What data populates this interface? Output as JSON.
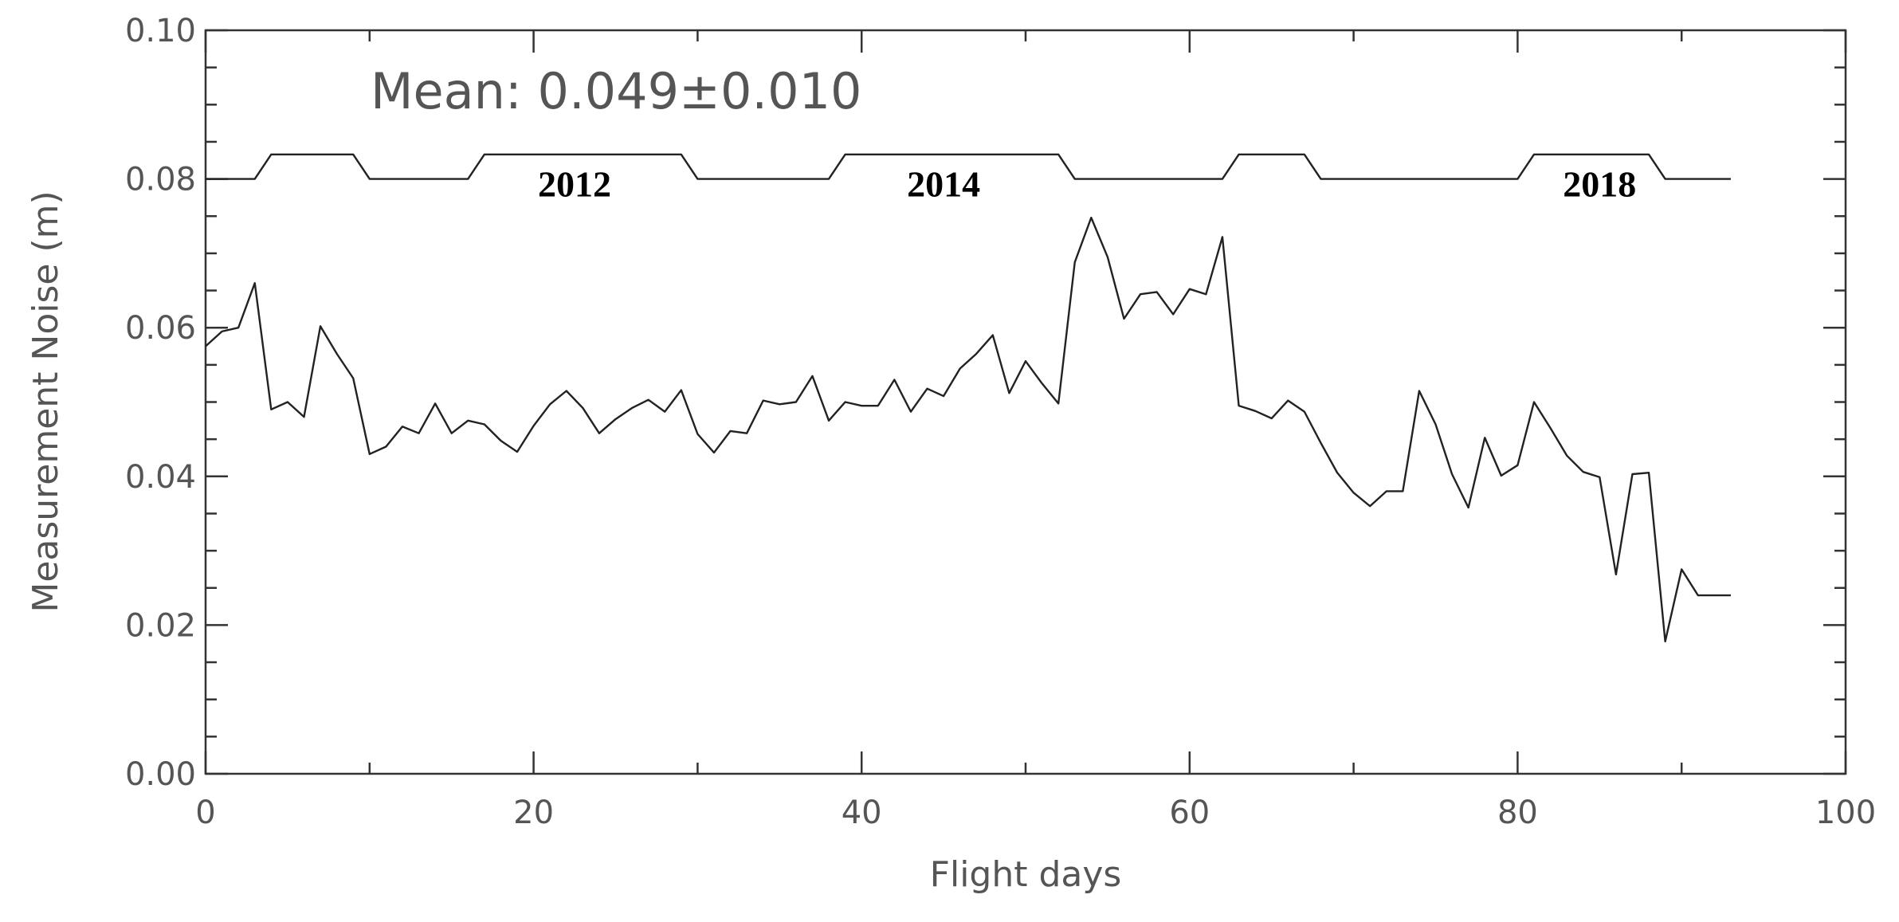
{
  "chart_data": {
    "type": "line",
    "title": "",
    "xlabel": "Flight days",
    "ylabel": "Measurement Noise (m)",
    "xlim": [
      0,
      100
    ],
    "ylim": [
      0,
      0.1
    ],
    "x_ticks": [
      0,
      20,
      40,
      60,
      80,
      100
    ],
    "y_ticks": [
      0.0,
      0.02,
      0.04,
      0.06,
      0.08,
      0.1
    ],
    "x_tick_labels": [
      "0",
      "20",
      "40",
      "60",
      "80",
      "100"
    ],
    "y_tick_labels": [
      "0.00",
      "0.02",
      "0.04",
      "0.06",
      "0.08",
      "0.10"
    ],
    "grid": false,
    "annotation": "Mean: 0.049±0.010",
    "series": [
      {
        "x": [
          0,
          1,
          2,
          3,
          4,
          5,
          6,
          7,
          8,
          9,
          10,
          11,
          12,
          13,
          14,
          15,
          16,
          17,
          18,
          19,
          20,
          21,
          22,
          23,
          24,
          25,
          26,
          27,
          28,
          29,
          30,
          31,
          32,
          33,
          34,
          35,
          36,
          37,
          38,
          39,
          40,
          41,
          42,
          43,
          44,
          45,
          46,
          47,
          48,
          49,
          50,
          51,
          52,
          53,
          54,
          55,
          56,
          57,
          58,
          59,
          60,
          61,
          62,
          63,
          64,
          65,
          66,
          67,
          68,
          69,
          70,
          71,
          72,
          73,
          74,
          75,
          76,
          77,
          78,
          79,
          80,
          81,
          82,
          83,
          84,
          85,
          86,
          87,
          88,
          89,
          90,
          91,
          92,
          93
        ],
        "values": [
          0.0575,
          0.0595,
          0.06,
          0.066,
          0.049,
          0.05,
          0.048,
          0.0602,
          0.0565,
          0.0532,
          0.043,
          0.044,
          0.0467,
          0.0458,
          0.0498,
          0.0458,
          0.0475,
          0.047,
          0.0448,
          0.0433,
          0.0468,
          0.0497,
          0.0515,
          0.0492,
          0.0458,
          0.0477,
          0.0492,
          0.0503,
          0.0487,
          0.0516,
          0.0457,
          0.0432,
          0.0461,
          0.0458,
          0.0502,
          0.0497,
          0.05,
          0.0535,
          0.0475,
          0.05,
          0.0495,
          0.0495,
          0.053,
          0.0487,
          0.0518,
          0.0508,
          0.0545,
          0.0565,
          0.059,
          0.0512,
          0.0555,
          0.0525,
          0.0498,
          0.0688,
          0.0748,
          0.0695,
          0.0612,
          0.0645,
          0.0648,
          0.0618,
          0.0652,
          0.0645,
          0.0722,
          0.0495,
          0.0488,
          0.0478,
          0.0502,
          0.0487,
          0.0445,
          0.0405,
          0.0378,
          0.036,
          0.038,
          0.038,
          0.0515,
          0.047,
          0.0403,
          0.0358,
          0.0452,
          0.0401,
          0.0415,
          0.05,
          0.0465,
          0.0428,
          0.0406,
          0.0399,
          0.0268,
          0.0403,
          0.0405,
          0.0178,
          0.0275,
          0.024,
          0.024,
          0.024
        ]
      }
    ],
    "year_track": {
      "labels": [
        {
          "text": "2012",
          "x": 22.5
        },
        {
          "text": "2014",
          "x": 45.0
        },
        {
          "text": "2018",
          "x": 85.0
        }
      ],
      "segments": [
        {
          "start": 0,
          "end": 3,
          "level": "low"
        },
        {
          "start": 4,
          "end": 9,
          "level": "high"
        },
        {
          "start": 10,
          "end": 16,
          "level": "low"
        },
        {
          "start": 17,
          "end": 29,
          "level": "high"
        },
        {
          "start": 30,
          "end": 38,
          "level": "low"
        },
        {
          "start": 39,
          "end": 52,
          "level": "high"
        },
        {
          "start": 53,
          "end": 62,
          "level": "low"
        },
        {
          "start": 63,
          "end": 67,
          "level": "high"
        },
        {
          "start": 68,
          "end": 80,
          "level": "low"
        },
        {
          "start": 81,
          "end": 88,
          "level": "high"
        },
        {
          "start": 89,
          "end": 93,
          "level": "low"
        }
      ],
      "low_y": 0.08,
      "high_y": 0.0833
    }
  }
}
